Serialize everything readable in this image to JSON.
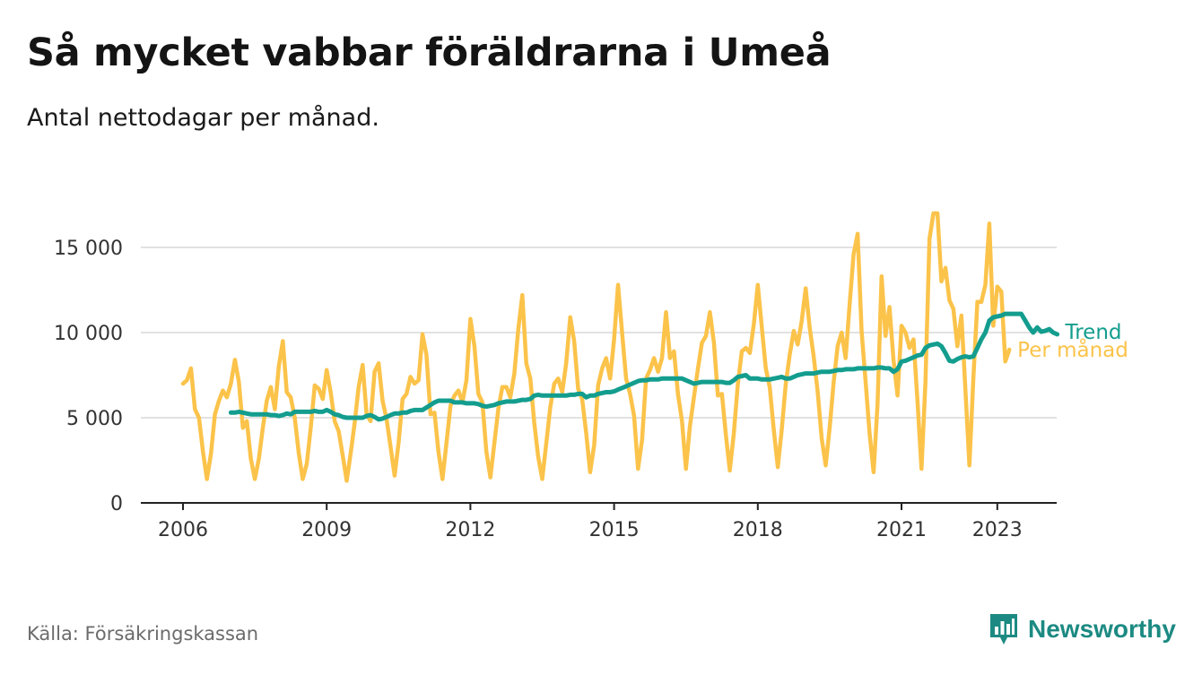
{
  "title": "Så mycket vabbar föräldrarna i Umeå",
  "subtitle": "Antal nettodagar per månad.",
  "source": "Källa: Försäkringskassan",
  "brand": {
    "name": "Newsworthy",
    "icon": "newsworthy-logo-icon",
    "color": "#1c8a82"
  },
  "chart_data": {
    "type": "line",
    "title": "Så mycket vabbar föräldrarna i Umeå",
    "subtitle": "Antal nettodagar per månad.",
    "xlabel": "",
    "ylabel": "",
    "x_ticks": [
      "2006",
      "2009",
      "2012",
      "2015",
      "2018",
      "2021",
      "2023"
    ],
    "y_ticks": [
      "0",
      "5 000",
      "10 000",
      "15 000"
    ],
    "y_tick_values": [
      0,
      5000,
      10000,
      15000
    ],
    "ylim": [
      0,
      17000
    ],
    "xlim": [
      "2005-11",
      "2023-11"
    ],
    "grid": "horizontal",
    "legend": "end-labels",
    "series": [
      {
        "name": "Per månad",
        "color": "#fbc34a",
        "start": "2006-01",
        "values": [
          7000,
          7200,
          7900,
          5500,
          5000,
          3000,
          1400,
          2900,
          5200,
          6000,
          6600,
          6200,
          7000,
          8400,
          7100,
          4400,
          4800,
          2600,
          1400,
          2600,
          4400,
          6000,
          6800,
          5500,
          8000,
          9500,
          6500,
          6200,
          5000,
          2900,
          1400,
          2300,
          4400,
          6900,
          6700,
          6100,
          7800,
          6500,
          4800,
          4200,
          2800,
          1300,
          2900,
          4700,
          6800,
          8100,
          5200,
          4800,
          7700,
          8200,
          6000,
          4900,
          3300,
          1600,
          3500,
          6100,
          6400,
          7400,
          7000,
          7200,
          9900,
          8700,
          5200,
          5300,
          3000,
          1400,
          3500,
          5700,
          6300,
          6600,
          5900,
          7200,
          10800,
          9200,
          6400,
          5900,
          3000,
          1500,
          3500,
          5500,
          6800,
          6800,
          6200,
          7600,
          10200,
          12200,
          8200,
          7300,
          4700,
          2700,
          1400,
          3500,
          5600,
          7000,
          7300,
          6500,
          8200,
          10900,
          9500,
          6700,
          6100,
          4100,
          1800,
          3400,
          6900,
          7900,
          8500,
          7300,
          9600,
          12800,
          10000,
          7300,
          6400,
          5100,
          2000,
          3700,
          7300,
          7800,
          8500,
          7700,
          8500,
          11200,
          8500,
          8900,
          6400,
          4800,
          2000,
          4500,
          6200,
          7900,
          9400,
          9800,
          11200,
          9400,
          6300,
          6400,
          4000,
          1900,
          4100,
          7000,
          8900,
          9100,
          8800,
          10500,
          12800,
          10300,
          7900,
          6800,
          4300,
          2100,
          4300,
          7000,
          8700,
          10100,
          9300,
          10700,
          12600,
          10300,
          8600,
          6500,
          3800,
          2200,
          4400,
          7100,
          9200,
          10000,
          8500,
          11600,
          14600,
          15800,
          10100,
          7100,
          4100,
          1800,
          5800,
          13300,
          9800,
          11500,
          8400,
          6300,
          10400,
          10000,
          9100,
          9600,
          6000,
          2000,
          7100,
          15500,
          17000,
          17000,
          13000,
          13800,
          11900,
          11400,
          9200,
          11000,
          6700,
          2200,
          7300,
          11800,
          11800,
          12800,
          16400,
          10400,
          12700,
          12400,
          8300,
          9000
        ]
      },
      {
        "name": "Trend",
        "color": "#139d8e",
        "start": "2007-01",
        "values": [
          5300,
          5300,
          5350,
          5300,
          5250,
          5200,
          5200,
          5200,
          5200,
          5200,
          5150,
          5150,
          5100,
          5150,
          5250,
          5200,
          5350,
          5350,
          5350,
          5350,
          5350,
          5400,
          5350,
          5350,
          5450,
          5350,
          5200,
          5150,
          5050,
          5000,
          5000,
          5000,
          5000,
          5000,
          5100,
          5150,
          5050,
          4900,
          4950,
          5050,
          5150,
          5250,
          5250,
          5300,
          5300,
          5400,
          5450,
          5450,
          5450,
          5600,
          5750,
          5900,
          6000,
          6000,
          6000,
          6000,
          5900,
          5900,
          5900,
          5850,
          5850,
          5850,
          5800,
          5700,
          5650,
          5700,
          5750,
          5850,
          5900,
          5950,
          5950,
          5950,
          6000,
          6050,
          6050,
          6100,
          6300,
          6350,
          6300,
          6300,
          6300,
          6300,
          6300,
          6300,
          6300,
          6350,
          6350,
          6400,
          6400,
          6200,
          6300,
          6300,
          6400,
          6450,
          6500,
          6500,
          6550,
          6650,
          6750,
          6850,
          6950,
          7050,
          7150,
          7200,
          7200,
          7250,
          7250,
          7250,
          7300,
          7300,
          7300,
          7300,
          7300,
          7300,
          7200,
          7100,
          7000,
          7050,
          7100,
          7100,
          7100,
          7100,
          7100,
          7100,
          7050,
          7050,
          7200,
          7400,
          7450,
          7500,
          7300,
          7300,
          7300,
          7250,
          7250,
          7250,
          7300,
          7350,
          7400,
          7300,
          7300,
          7400,
          7500,
          7550,
          7600,
          7600,
          7600,
          7650,
          7700,
          7700,
          7700,
          7750,
          7800,
          7800,
          7850,
          7850,
          7850,
          7900,
          7900,
          7900,
          7900,
          7900,
          7950,
          7950,
          7900,
          7900,
          7700,
          7850,
          8300,
          8350,
          8450,
          8550,
          8650,
          8700,
          9100,
          9250,
          9300,
          9350,
          9200,
          8800,
          8350,
          8300,
          8450,
          8550,
          8600,
          8550,
          8600,
          9100,
          9600,
          10000,
          10700,
          10900,
          10950,
          11000,
          11100,
          11100,
          11100,
          11100,
          11100,
          10700,
          10300,
          10000,
          10300,
          10050,
          10100,
          10200,
          10000,
          9900
        ]
      }
    ]
  }
}
